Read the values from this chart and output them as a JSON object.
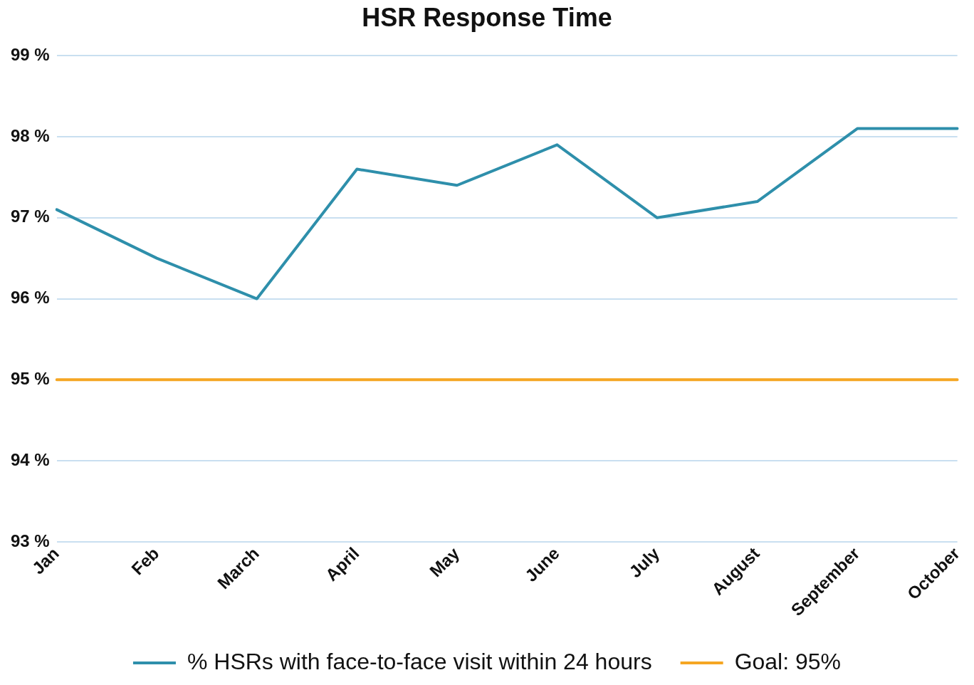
{
  "chart_data": {
    "type": "line",
    "title": "HSR Response Time",
    "categories": [
      "Jan",
      "Feb",
      "March",
      "April",
      "May",
      "June",
      "July",
      "August",
      "September",
      "October"
    ],
    "series": [
      {
        "name": "% HSRs with face-to-face visit within 24 hours",
        "color": "#2e8fab",
        "values": [
          97.1,
          96.5,
          96.0,
          97.6,
          97.4,
          97.9,
          97.0,
          97.2,
          98.1,
          98.1
        ]
      },
      {
        "name": "Goal: 95%",
        "color": "#f5a623",
        "values": [
          95,
          95,
          95,
          95,
          95,
          95,
          95,
          95,
          95,
          95
        ]
      }
    ],
    "ylim": [
      93,
      99
    ],
    "yticks": [
      {
        "value": 93,
        "label": "93 %"
      },
      {
        "value": 94,
        "label": "94 %"
      },
      {
        "value": 95,
        "label": "95 %"
      },
      {
        "value": 96,
        "label": "96 %"
      },
      {
        "value": 97,
        "label": "97 %"
      },
      {
        "value": 98,
        "label": "98 %"
      },
      {
        "value": 99,
        "label": "99 %"
      }
    ],
    "grid": "y",
    "legend": "bottom",
    "marker": "none",
    "line_style": "solid"
  }
}
